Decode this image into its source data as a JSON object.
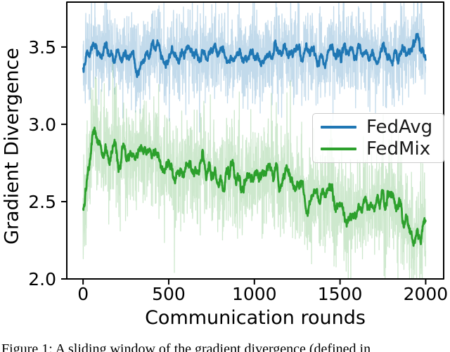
{
  "figure": {
    "caption": "Figure 1: A sliding window of the gradient divergence (defined in"
  },
  "chart_data": {
    "type": "line",
    "title": "",
    "xlabel": "Communication rounds",
    "ylabel": "Gradient Divergence",
    "xlim": [
      -95,
      2105
    ],
    "ylim": [
      2.0,
      3.79
    ],
    "grid": false,
    "frame_color": "#000000",
    "legend_position": "center right",
    "xticks": [
      {
        "v": 0,
        "label": "0"
      },
      {
        "v": 500,
        "label": "500"
      },
      {
        "v": 1000,
        "label": "1000"
      },
      {
        "v": 1500,
        "label": "1500"
      },
      {
        "v": 2000,
        "label": "2000"
      }
    ],
    "yticks": [
      {
        "v": 2.0,
        "label": "2.0"
      },
      {
        "v": 2.5,
        "label": "2.5"
      },
      {
        "v": 3.0,
        "label": "3.0"
      },
      {
        "v": 3.5,
        "label": "3.5"
      }
    ],
    "n_points": 2001,
    "series": [
      {
        "name": "FedAvg",
        "color": "#1f77b4",
        "band_alpha": 0.27,
        "noise_sigma": 0.145,
        "smooth_window": 21,
        "trend": [
          [
            0,
            3.35
          ],
          [
            25,
            3.44
          ],
          [
            50,
            3.48
          ],
          [
            80,
            3.52
          ],
          [
            110,
            3.44
          ],
          [
            150,
            3.45
          ],
          [
            200,
            3.46
          ],
          [
            250,
            3.42
          ],
          [
            300,
            3.44
          ],
          [
            330,
            3.38
          ],
          [
            380,
            3.48
          ],
          [
            440,
            3.53
          ],
          [
            480,
            3.41
          ],
          [
            520,
            3.45
          ],
          [
            560,
            3.42
          ],
          [
            600,
            3.45
          ],
          [
            650,
            3.47
          ],
          [
            700,
            3.44
          ],
          [
            750,
            3.47
          ],
          [
            800,
            3.45
          ],
          [
            850,
            3.43
          ],
          [
            900,
            3.47
          ],
          [
            950,
            3.45
          ],
          [
            1000,
            3.46
          ],
          [
            1050,
            3.44
          ],
          [
            1100,
            3.46
          ],
          [
            1150,
            3.48
          ],
          [
            1200,
            3.44
          ],
          [
            1250,
            3.47
          ],
          [
            1300,
            3.45
          ],
          [
            1350,
            3.47
          ],
          [
            1400,
            3.44
          ],
          [
            1450,
            3.46
          ],
          [
            1500,
            3.45
          ],
          [
            1550,
            3.44
          ],
          [
            1600,
            3.47
          ],
          [
            1650,
            3.44
          ],
          [
            1700,
            3.46
          ],
          [
            1750,
            3.44
          ],
          [
            1800,
            3.46
          ],
          [
            1850,
            3.43
          ],
          [
            1900,
            3.47
          ],
          [
            1945,
            3.53
          ],
          [
            1975,
            3.48
          ],
          [
            2000,
            3.45
          ]
        ]
      },
      {
        "name": "FedMix",
        "color": "#2ca02c",
        "band_alpha": 0.24,
        "noise_sigma": 0.175,
        "smooth_window": 21,
        "trend": [
          [
            0,
            2.4
          ],
          [
            20,
            2.62
          ],
          [
            45,
            2.8
          ],
          [
            70,
            2.95
          ],
          [
            95,
            2.87
          ],
          [
            120,
            2.82
          ],
          [
            150,
            2.79
          ],
          [
            190,
            2.83
          ],
          [
            230,
            2.81
          ],
          [
            270,
            2.79
          ],
          [
            310,
            2.8
          ],
          [
            350,
            2.81
          ],
          [
            390,
            2.82
          ],
          [
            430,
            2.78
          ],
          [
            460,
            2.71
          ],
          [
            500,
            2.69
          ],
          [
            540,
            2.67
          ],
          [
            580,
            2.71
          ],
          [
            620,
            2.73
          ],
          [
            660,
            2.67
          ],
          [
            700,
            2.71
          ],
          [
            740,
            2.65
          ],
          [
            780,
            2.68
          ],
          [
            820,
            2.66
          ],
          [
            860,
            2.68
          ],
          [
            900,
            2.64
          ],
          [
            940,
            2.66
          ],
          [
            980,
            2.65
          ],
          [
            1020,
            2.63
          ],
          [
            1060,
            2.68
          ],
          [
            1100,
            2.7
          ],
          [
            1140,
            2.66
          ],
          [
            1180,
            2.67
          ],
          [
            1220,
            2.62
          ],
          [
            1260,
            2.58
          ],
          [
            1310,
            2.46
          ],
          [
            1360,
            2.55
          ],
          [
            1400,
            2.56
          ],
          [
            1470,
            2.55
          ],
          [
            1500,
            2.46
          ],
          [
            1530,
            2.42
          ],
          [
            1560,
            2.44
          ],
          [
            1600,
            2.43
          ],
          [
            1640,
            2.46
          ],
          [
            1680,
            2.47
          ],
          [
            1720,
            2.5
          ],
          [
            1760,
            2.48
          ],
          [
            1800,
            2.52
          ],
          [
            1830,
            2.5
          ],
          [
            1860,
            2.42
          ],
          [
            1890,
            2.36
          ],
          [
            1920,
            2.3
          ],
          [
            1945,
            2.25
          ],
          [
            1975,
            2.3
          ],
          [
            2000,
            2.38
          ]
        ]
      }
    ]
  }
}
